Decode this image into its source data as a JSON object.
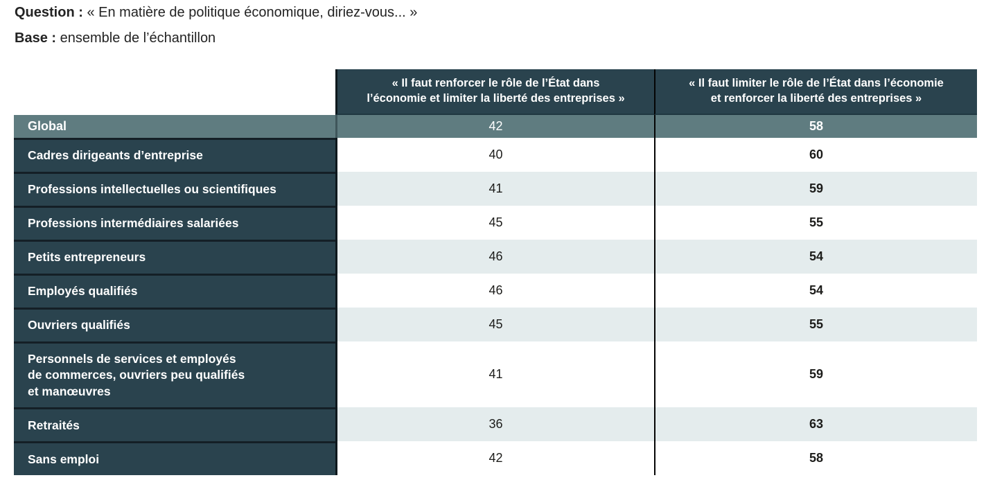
{
  "page": {
    "question_label": "Question :",
    "question_text": "« En matière de politique économique, diriez-vous... »",
    "base_label": "Base :",
    "base_text": "ensemble de l’échantillon"
  },
  "chart_data": {
    "type": "table",
    "title": "En matière de politique économique, diriez-vous...",
    "columns": [
      "« Il faut renforcer le rôle de l’État dans\nl’économie et limiter la liberté des entreprises »",
      "« Il faut limiter le rôle de l’État dans l’économie\net renforcer la liberté des entreprises »"
    ],
    "rows": [
      {
        "label": "Global",
        "values": [
          42,
          58
        ],
        "highlight": true
      },
      {
        "label": "Cadres dirigeants d’entreprise",
        "values": [
          40,
          60
        ]
      },
      {
        "label": "Professions intellectuelles ou scientifiques",
        "values": [
          41,
          59
        ]
      },
      {
        "label": "Professions intermédiaires salariées",
        "values": [
          45,
          55
        ]
      },
      {
        "label": "Petits entrepreneurs",
        "values": [
          46,
          54
        ]
      },
      {
        "label": "Employés qualifiés",
        "values": [
          46,
          54
        ]
      },
      {
        "label": "Ouvriers qualifiés",
        "values": [
          45,
          55
        ]
      },
      {
        "label": "Personnels de services et employés\nde commerces, ouvriers peu qualifiés\net manœuvres",
        "values": [
          41,
          59
        ]
      },
      {
        "label": "Retraités",
        "values": [
          36,
          63
        ]
      },
      {
        "label": "Sans emploi",
        "values": [
          42,
          58
        ]
      }
    ]
  },
  "colors": {
    "header_bg": "#2a434e",
    "label_bg": "#2a434e",
    "global_row_bg": "#5f7c80",
    "stripe_bg": "#e4eced",
    "row_separator": "#141f26",
    "column_divider": "#040404",
    "text_light": "#ffffff",
    "text_dark": "#1c1c1a"
  }
}
